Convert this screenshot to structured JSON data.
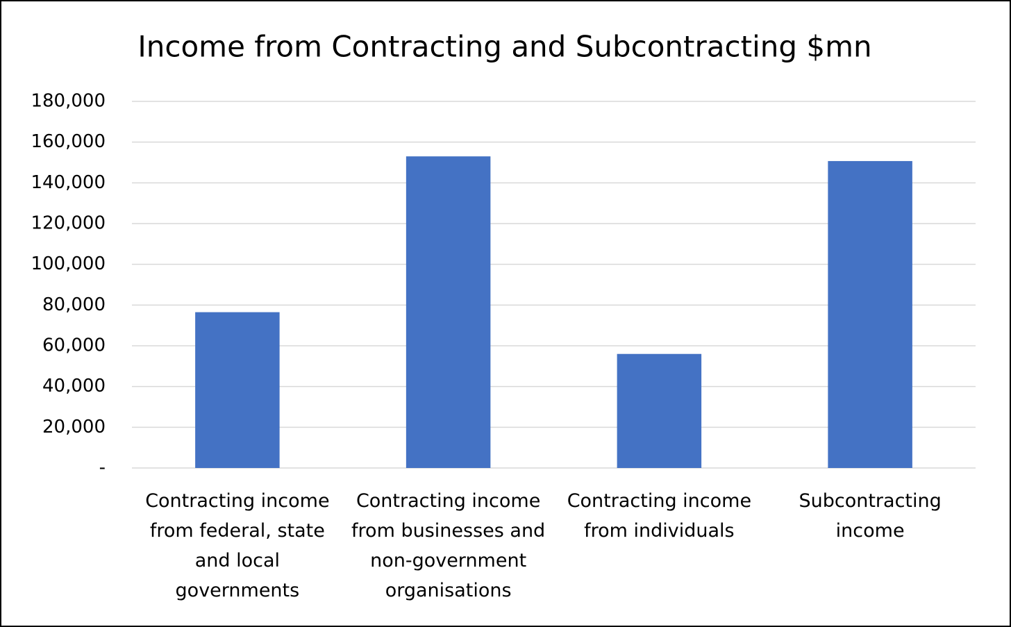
{
  "chart_data": {
    "type": "bar",
    "title": "Income from Contracting and Subcontracting $mn",
    "categories": [
      "Contracting income from federal, state and local governments",
      "Contracting income from businesses and non-government organisations",
      "Contracting income from individuals",
      "Subcontracting income"
    ],
    "values": [
      76500,
      153000,
      56000,
      150700
    ],
    "color": "#4472c4",
    "ylim": [
      0,
      180000
    ],
    "yticks": [
      {
        "value": 0,
        "label": "-"
      },
      {
        "value": 20000,
        "label": "20,000"
      },
      {
        "value": 40000,
        "label": "40,000"
      },
      {
        "value": 60000,
        "label": "60,000"
      },
      {
        "value": 80000,
        "label": "80,000"
      },
      {
        "value": 100000,
        "label": "100,000"
      },
      {
        "value": 120000,
        "label": "120,000"
      },
      {
        "value": 140000,
        "label": "140,000"
      },
      {
        "value": 160000,
        "label": "160,000"
      },
      {
        "value": 180000,
        "label": "180,000"
      }
    ],
    "grid": true
  }
}
